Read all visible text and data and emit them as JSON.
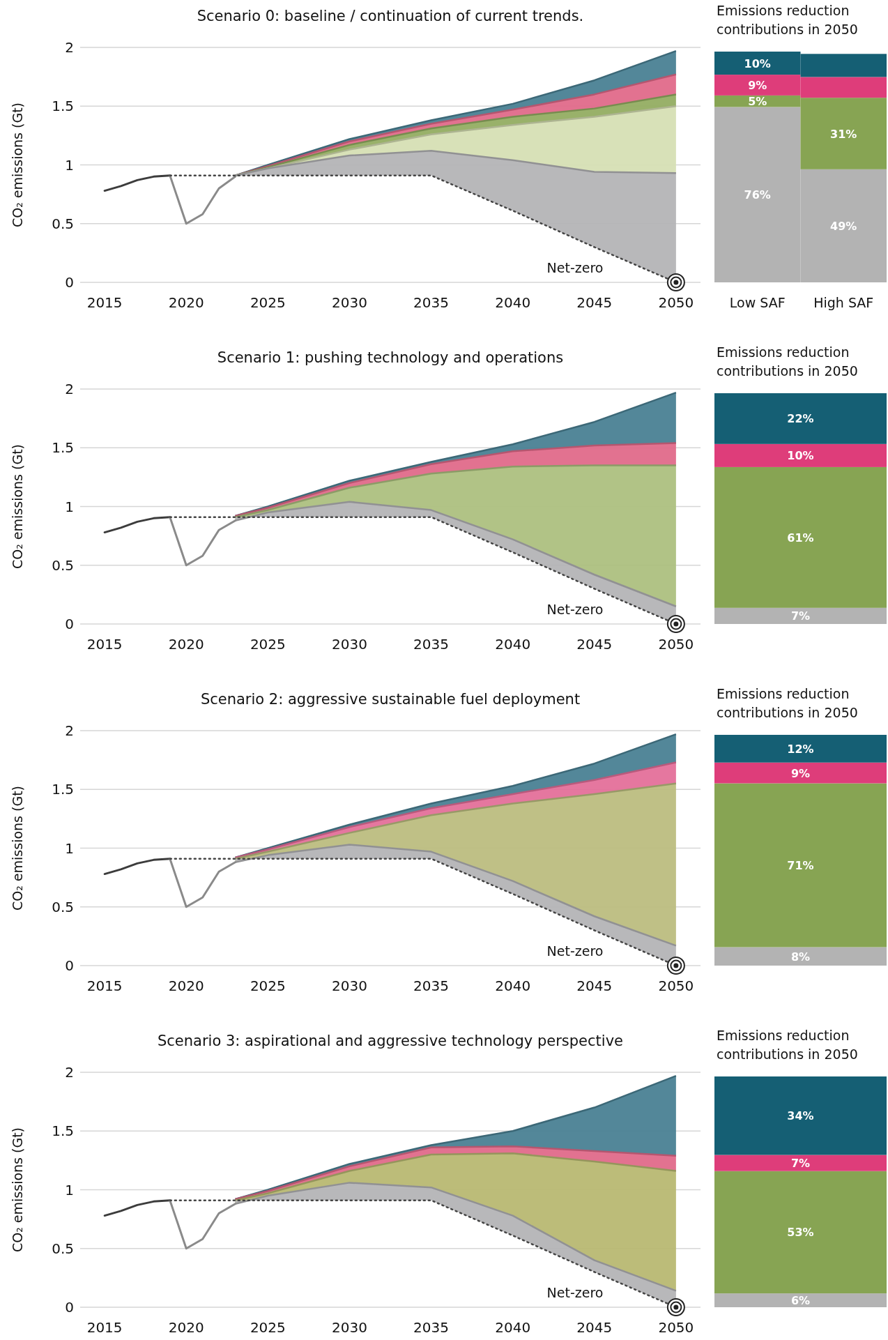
{
  "chart_data": [
    {
      "type": "area",
      "title": "Scenario 0: baseline / continuation of current trends.",
      "ylabel": "CO₂ emissions (Gt)",
      "xlim": [
        2013.5,
        2051.5
      ],
      "xticks": [
        2015,
        2020,
        2025,
        2030,
        2035,
        2040,
        2045,
        2050
      ],
      "ylim": [
        0,
        2
      ],
      "yticks": [
        0,
        0.5,
        1,
        1.5,
        2
      ],
      "grid": "y",
      "annotations": [
        "Net-zero"
      ],
      "series": [
        {
          "type": "line",
          "color": "#3c3c3c",
          "x": [
            2015,
            2016,
            2017,
            2018,
            2019
          ],
          "values": [
            0.78,
            0.82,
            0.87,
            0.9,
            0.91
          ]
        },
        {
          "type": "line",
          "color": "#8a8a8a",
          "x": [
            2019,
            2020,
            2021,
            2022,
            2023
          ],
          "values": [
            0.91,
            0.5,
            0.58,
            0.8,
            0.9
          ]
        },
        {
          "type": "area",
          "color": "#4a8193",
          "x": [
            2023,
            2025,
            2030,
            2035,
            2040,
            2045,
            2050
          ],
          "values": [
            0.91,
            1.0,
            1.22,
            1.38,
            1.52,
            1.72,
            1.97
          ]
        },
        {
          "type": "area",
          "color": "#e06a8a",
          "x": [
            2023,
            2025,
            2030,
            2035,
            2040,
            2045,
            2050
          ],
          "values": [
            0.91,
            0.99,
            1.2,
            1.35,
            1.47,
            1.6,
            1.77
          ]
        },
        {
          "type": "area",
          "color": "#93ad62",
          "x": [
            2023,
            2025,
            2030,
            2035,
            2040,
            2045,
            2050
          ],
          "values": [
            0.91,
            0.98,
            1.17,
            1.31,
            1.41,
            1.48,
            1.6
          ]
        },
        {
          "type": "area",
          "color": "#d6dfb4",
          "x": [
            2023,
            2025,
            2030,
            2035,
            2040,
            2045,
            2050
          ],
          "values": [
            0.91,
            0.97,
            1.13,
            1.26,
            1.34,
            1.41,
            1.5
          ]
        },
        {
          "type": "area",
          "color": "#b4b4b6",
          "x": [
            2023,
            2025,
            2030,
            2035,
            2040,
            2045,
            2050
          ],
          "values": [
            0.91,
            0.97,
            1.08,
            1.12,
            1.04,
            0.94,
            0.93
          ]
        },
        {
          "type": "line",
          "line_style": "dotted",
          "color": "#444444",
          "x": [
            2019,
            2023,
            2035,
            2040,
            2045,
            2050
          ],
          "values": [
            0.91,
            0.91,
            0.91,
            0.61,
            0.3,
            0
          ]
        }
      ]
    },
    {
      "type": "bar",
      "stacked": true,
      "title": "Emissions reduction contributions in 2050",
      "categories": [
        "Low SAF",
        "High SAF"
      ],
      "series": [
        {
          "color": "#b3b3b3",
          "values": [
            76,
            49
          ],
          "value_labels": [
            "76%",
            "49%"
          ]
        },
        {
          "color": "#87a453",
          "values": [
            5,
            31
          ],
          "value_labels": [
            "5%",
            "31%"
          ]
        },
        {
          "color": "#de3d7a",
          "values": [
            9,
            9
          ],
          "value_labels": [
            "9%",
            null
          ]
        },
        {
          "color": "#155f74",
          "values": [
            10,
            10
          ],
          "value_labels": [
            "10%",
            null
          ]
        }
      ]
    },
    {
      "type": "area",
      "title": "Scenario 1: pushing technology and operations",
      "ylabel": "CO₂ emissions (Gt)",
      "xlim": [
        2013.5,
        2051.5
      ],
      "xticks": [
        2015,
        2020,
        2025,
        2030,
        2035,
        2040,
        2045,
        2050
      ],
      "ylim": [
        0,
        2
      ],
      "yticks": [
        0,
        0.5,
        1,
        1.5,
        2
      ],
      "grid": "y",
      "annotations": [
        "Net-zero"
      ],
      "series": [
        {
          "type": "line",
          "color": "#3c3c3c",
          "x": [
            2015,
            2016,
            2017,
            2018,
            2019
          ],
          "values": [
            0.78,
            0.82,
            0.87,
            0.9,
            0.91
          ]
        },
        {
          "type": "line",
          "color": "#8a8a8a",
          "x": [
            2019,
            2020,
            2021,
            2022,
            2023
          ],
          "values": [
            0.91,
            0.5,
            0.58,
            0.8,
            0.88
          ]
        },
        {
          "type": "area",
          "color": "#4a8193",
          "x": [
            2023,
            2025,
            2030,
            2035,
            2040,
            2045,
            2050
          ],
          "values": [
            0.92,
            1.0,
            1.22,
            1.38,
            1.53,
            1.72,
            1.97
          ]
        },
        {
          "type": "area",
          "color": "#e06a8a",
          "x": [
            2023,
            2025,
            2030,
            2035,
            2040,
            2045,
            2050
          ],
          "values": [
            0.92,
            0.99,
            1.2,
            1.36,
            1.47,
            1.52,
            1.54
          ]
        },
        {
          "type": "area",
          "color": "#adc07f",
          "x": [
            2023,
            2025,
            2030,
            2035,
            2040,
            2045,
            2050
          ],
          "values": [
            0.91,
            0.97,
            1.16,
            1.28,
            1.34,
            1.35,
            1.35
          ]
        },
        {
          "type": "area",
          "color": "#b4b4b6",
          "x": [
            2023,
            2025,
            2030,
            2035,
            2040,
            2045,
            2050
          ],
          "values": [
            0.88,
            0.95,
            1.04,
            0.97,
            0.72,
            0.42,
            0.15
          ]
        },
        {
          "type": "line",
          "line_style": "dotted",
          "color": "#444444",
          "x": [
            2019,
            2023,
            2035,
            2040,
            2045,
            2050
          ],
          "values": [
            0.91,
            0.91,
            0.91,
            0.61,
            0.3,
            0
          ]
        }
      ]
    },
    {
      "type": "bar",
      "stacked": true,
      "title": "Emissions reduction contributions in 2050",
      "categories": [
        null
      ],
      "series": [
        {
          "color": "#b3b3b3",
          "values": [
            7
          ],
          "value_labels": [
            "7%"
          ]
        },
        {
          "color": "#87a453",
          "values": [
            61
          ],
          "value_labels": [
            "61%"
          ]
        },
        {
          "color": "#de3d7a",
          "values": [
            10
          ],
          "value_labels": [
            "10%"
          ]
        },
        {
          "color": "#155f74",
          "values": [
            22
          ],
          "value_labels": [
            "22%"
          ]
        }
      ]
    },
    {
      "type": "area",
      "title": "Scenario 2: aggressive sustainable fuel deployment",
      "ylabel": "CO₂ emissions (Gt)",
      "xlim": [
        2013.5,
        2051.5
      ],
      "xticks": [
        2015,
        2020,
        2025,
        2030,
        2035,
        2040,
        2045,
        2050
      ],
      "ylim": [
        0,
        2
      ],
      "yticks": [
        0,
        0.5,
        1,
        1.5,
        2
      ],
      "grid": "y",
      "annotations": [
        "Net-zero"
      ],
      "series": [
        {
          "type": "line",
          "color": "#3c3c3c",
          "x": [
            2015,
            2016,
            2017,
            2018,
            2019
          ],
          "values": [
            0.78,
            0.82,
            0.87,
            0.9,
            0.91
          ]
        },
        {
          "type": "line",
          "color": "#8a8a8a",
          "x": [
            2019,
            2020,
            2021,
            2022,
            2023
          ],
          "values": [
            0.91,
            0.5,
            0.58,
            0.8,
            0.88
          ]
        },
        {
          "type": "area",
          "color": "#4a8193",
          "x": [
            2023,
            2025,
            2030,
            2035,
            2040,
            2045,
            2050
          ],
          "values": [
            0.92,
            1.0,
            1.2,
            1.38,
            1.53,
            1.72,
            1.97
          ]
        },
        {
          "type": "area",
          "color": "#e4709a",
          "x": [
            2023,
            2025,
            2030,
            2035,
            2040,
            2045,
            2050
          ],
          "values": [
            0.92,
            0.99,
            1.18,
            1.34,
            1.46,
            1.58,
            1.73
          ]
        },
        {
          "type": "area",
          "color": "#bcbd7f",
          "x": [
            2023,
            2025,
            2030,
            2035,
            2040,
            2045,
            2050
          ],
          "values": [
            0.91,
            0.97,
            1.13,
            1.28,
            1.38,
            1.46,
            1.55
          ]
        },
        {
          "type": "area",
          "color": "#b4b4b6",
          "x": [
            2023,
            2025,
            2030,
            2035,
            2040,
            2045,
            2050
          ],
          "values": [
            0.88,
            0.94,
            1.03,
            0.97,
            0.72,
            0.42,
            0.17
          ]
        },
        {
          "type": "line",
          "line_style": "dotted",
          "color": "#444444",
          "x": [
            2019,
            2023,
            2035,
            2040,
            2045,
            2050
          ],
          "values": [
            0.91,
            0.91,
            0.91,
            0.61,
            0.3,
            0
          ]
        }
      ]
    },
    {
      "type": "bar",
      "stacked": true,
      "title": "Emissions reduction contributions in 2050",
      "categories": [
        null
      ],
      "series": [
        {
          "color": "#b3b3b3",
          "values": [
            8
          ],
          "value_labels": [
            "8%"
          ]
        },
        {
          "color": "#87a453",
          "values": [
            71
          ],
          "value_labels": [
            "71%"
          ]
        },
        {
          "color": "#de3d7a",
          "values": [
            9
          ],
          "value_labels": [
            "9%"
          ]
        },
        {
          "color": "#155f74",
          "values": [
            12
          ],
          "value_labels": [
            "12%"
          ]
        }
      ]
    },
    {
      "type": "area",
      "title": "Scenario 3: aspirational and aggressive technology perspective",
      "ylabel": "CO₂ emissions (Gt)",
      "xlim": [
        2013.5,
        2051.5
      ],
      "xticks": [
        2015,
        2020,
        2025,
        2030,
        2035,
        2040,
        2045,
        2050
      ],
      "ylim": [
        0,
        2
      ],
      "yticks": [
        0,
        0.5,
        1,
        1.5,
        2
      ],
      "grid": "y",
      "annotations": [
        "Net-zero"
      ],
      "series": [
        {
          "type": "line",
          "color": "#3c3c3c",
          "x": [
            2015,
            2016,
            2017,
            2018,
            2019
          ],
          "values": [
            0.78,
            0.82,
            0.87,
            0.9,
            0.91
          ]
        },
        {
          "type": "line",
          "color": "#8a8a8a",
          "x": [
            2019,
            2020,
            2021,
            2022,
            2023
          ],
          "values": [
            0.91,
            0.5,
            0.58,
            0.8,
            0.88
          ]
        },
        {
          "type": "area",
          "color": "#4a8193",
          "x": [
            2023,
            2025,
            2030,
            2035,
            2040,
            2045,
            2050
          ],
          "values": [
            0.92,
            1.0,
            1.22,
            1.38,
            1.5,
            1.7,
            1.97
          ]
        },
        {
          "type": "area",
          "color": "#e06a8a",
          "x": [
            2023,
            2025,
            2030,
            2035,
            2040,
            2045,
            2050
          ],
          "values": [
            0.92,
            0.99,
            1.2,
            1.36,
            1.37,
            1.33,
            1.29
          ]
        },
        {
          "type": "area",
          "color": "#b8b872",
          "x": [
            2023,
            2025,
            2030,
            2035,
            2040,
            2045,
            2050
          ],
          "values": [
            0.91,
            0.97,
            1.16,
            1.3,
            1.31,
            1.24,
            1.16
          ]
        },
        {
          "type": "area",
          "color": "#b4b4b6",
          "x": [
            2023,
            2025,
            2030,
            2035,
            2040,
            2045,
            2050
          ],
          "values": [
            0.88,
            0.95,
            1.06,
            1.02,
            0.78,
            0.4,
            0.14
          ]
        },
        {
          "type": "line",
          "line_style": "dotted",
          "color": "#444444",
          "x": [
            2019,
            2023,
            2035,
            2040,
            2045,
            2050
          ],
          "values": [
            0.91,
            0.91,
            0.91,
            0.61,
            0.3,
            0
          ]
        }
      ]
    },
    {
      "type": "bar",
      "stacked": true,
      "title": "Emissions reduction contributions in 2050",
      "categories": [
        null
      ],
      "series": [
        {
          "color": "#b3b3b3",
          "values": [
            6
          ],
          "value_labels": [
            "6%"
          ]
        },
        {
          "color": "#87a453",
          "values": [
            53
          ],
          "value_labels": [
            "53%"
          ]
        },
        {
          "color": "#de3d7a",
          "values": [
            7
          ],
          "value_labels": [
            "7%"
          ]
        },
        {
          "color": "#155f74",
          "values": [
            34
          ],
          "value_labels": [
            "34%"
          ]
        }
      ]
    }
  ]
}
